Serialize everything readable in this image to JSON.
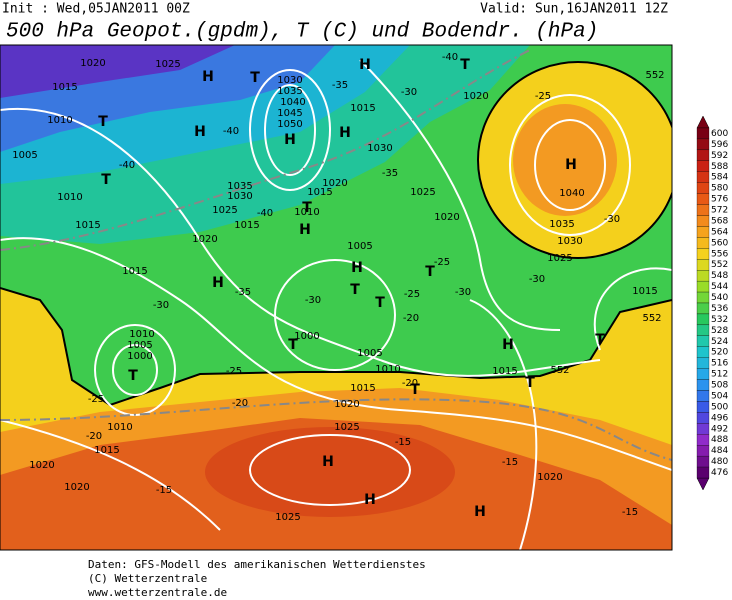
{
  "header": {
    "init": "Init : Wed,05JAN2011 00Z",
    "valid": "Valid: Sun,16JAN2011 12Z",
    "title": "500 hPa Geopot.(gpdm), T (C) und Bodendr. (hPa)"
  },
  "map": {
    "labels": [
      "H",
      "H",
      "H",
      "H",
      "H",
      "H",
      "H",
      "H",
      "H",
      "H",
      "H",
      "H",
      "H",
      "T",
      "T",
      "T",
      "T",
      "T",
      "T",
      "T",
      "T",
      "T",
      "T",
      "T",
      "T",
      "T",
      "1020",
      "1025",
      "1015",
      "1010",
      "1005",
      "1010",
      "1015",
      "1020",
      "1015",
      "1010",
      "1005",
      "1000",
      "1030",
      "1035",
      "1040",
      "1045",
      "1050",
      "1035",
      "1030",
      "1025",
      "1015",
      "1015",
      "1020",
      "1010",
      "1005",
      "1000",
      "1005",
      "1010",
      "1015",
      "1020",
      "1025",
      "1015",
      "1030",
      "1025",
      "1020",
      "1020",
      "1040",
      "1035",
      "1030",
      "1025",
      "1015",
      "1015",
      "1010",
      "1015",
      "1020",
      "1020",
      "1025",
      "1020",
      "-40",
      "-35",
      "-30",
      "-40",
      "-40",
      "-35",
      "-40",
      "-30",
      "-25",
      "-35",
      "-30",
      "-30",
      "-25",
      "-25",
      "-20",
      "-30",
      "-30",
      "-25",
      "-20",
      "-20",
      "-20",
      "-15",
      "-15",
      "-15",
      "-15",
      "-25",
      "552",
      "552",
      "552"
    ]
  },
  "colorbar": {
    "labels": [
      "600",
      "596",
      "592",
      "588",
      "584",
      "580",
      "576",
      "572",
      "568",
      "564",
      "560",
      "556",
      "552",
      "548",
      "544",
      "540",
      "536",
      "532",
      "528",
      "524",
      "520",
      "516",
      "512",
      "508",
      "504",
      "500",
      "496",
      "492",
      "488",
      "484",
      "480",
      "476"
    ]
  },
  "footer": [
    "Daten: GFS-Modell des amerikanischen Wetterdienstes",
    "(C) Wetterzentrale",
    "www.wetterzentrale.de"
  ]
}
